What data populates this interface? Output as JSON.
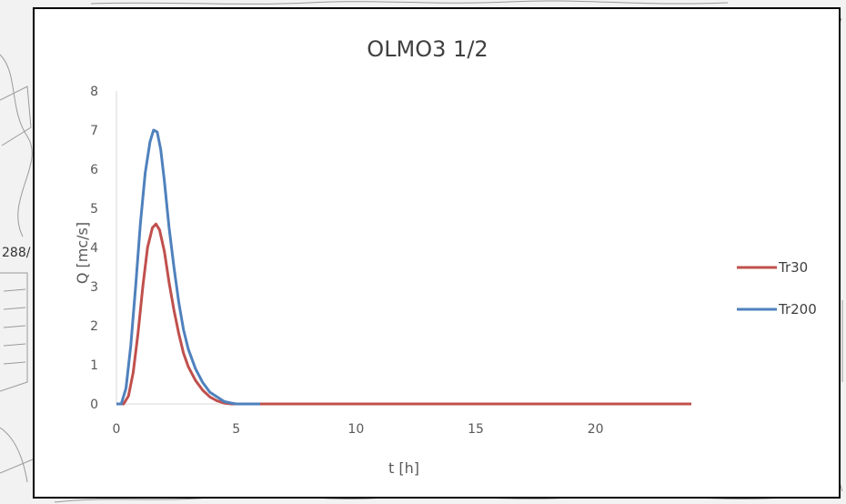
{
  "map_fragment_label": "288/",
  "chart_data": {
    "type": "line",
    "title": "OLMO3 1/2",
    "xlabel": "t [h]",
    "ylabel": "Q [mc/s]",
    "xlim": [
      0,
      24
    ],
    "ylim": [
      0,
      8
    ],
    "x_ticks": [
      0,
      5,
      10,
      15,
      20
    ],
    "y_ticks": [
      0,
      1,
      2,
      3,
      4,
      5,
      6,
      7,
      8
    ],
    "grid": false,
    "legend_position": "right",
    "series": [
      {
        "name": "Tr30",
        "color": "#c0504d",
        "points": [
          [
            0,
            0
          ],
          [
            0.3,
            0
          ],
          [
            0.5,
            0.2
          ],
          [
            0.7,
            0.8
          ],
          [
            0.9,
            1.8
          ],
          [
            1.1,
            3.0
          ],
          [
            1.3,
            4.0
          ],
          [
            1.5,
            4.5
          ],
          [
            1.65,
            4.6
          ],
          [
            1.8,
            4.45
          ],
          [
            2.0,
            3.9
          ],
          [
            2.2,
            3.1
          ],
          [
            2.4,
            2.4
          ],
          [
            2.6,
            1.8
          ],
          [
            2.8,
            1.3
          ],
          [
            3.0,
            0.95
          ],
          [
            3.3,
            0.6
          ],
          [
            3.6,
            0.35
          ],
          [
            3.9,
            0.18
          ],
          [
            4.2,
            0.08
          ],
          [
            4.5,
            0.02
          ],
          [
            4.8,
            0
          ],
          [
            6,
            0
          ],
          [
            24,
            0
          ]
        ]
      },
      {
        "name": "Tr200",
        "color": "#4f81bd",
        "points": [
          [
            0,
            0
          ],
          [
            0.2,
            0
          ],
          [
            0.4,
            0.4
          ],
          [
            0.6,
            1.5
          ],
          [
            0.8,
            3.0
          ],
          [
            1.0,
            4.6
          ],
          [
            1.2,
            5.9
          ],
          [
            1.4,
            6.7
          ],
          [
            1.55,
            7.0
          ],
          [
            1.7,
            6.95
          ],
          [
            1.85,
            6.5
          ],
          [
            2.0,
            5.7
          ],
          [
            2.2,
            4.5
          ],
          [
            2.4,
            3.5
          ],
          [
            2.6,
            2.6
          ],
          [
            2.8,
            1.9
          ],
          [
            3.0,
            1.4
          ],
          [
            3.3,
            0.9
          ],
          [
            3.6,
            0.55
          ],
          [
            3.9,
            0.3
          ],
          [
            4.2,
            0.18
          ],
          [
            4.5,
            0.06
          ],
          [
            4.8,
            0.02
          ],
          [
            5.0,
            0
          ],
          [
            6,
            0
          ]
        ]
      }
    ]
  }
}
